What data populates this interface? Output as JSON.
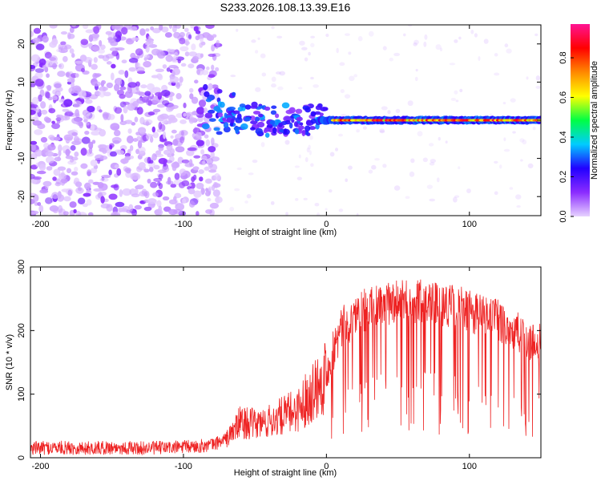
{
  "title": "S233.2026.108.13.39.E16",
  "chart_data": [
    {
      "id": "spectrogram",
      "type": "heatmap",
      "xlabel": "Height of straight line (km)",
      "ylabel": "Frequency (Hz)",
      "xlim": [
        -207,
        150
      ],
      "ylim": [
        -25,
        25
      ],
      "xticks": [
        -200,
        -100,
        0,
        100
      ],
      "yticks": [
        -20,
        -10,
        0,
        10,
        20
      ],
      "colorbar": {
        "label": "Normalized spectral amplitude",
        "range": [
          0,
          0.97
        ],
        "ticks": [
          "0.0",
          "0.2",
          "0.4",
          "0.6",
          "0.8"
        ],
        "tick_values": [
          0,
          0.2,
          0.4,
          0.6,
          0.8
        ],
        "colors": [
          "#e7d2ff",
          "#8b2cff",
          "#2200ff",
          "#00ccff",
          "#00ff44",
          "#ffff00",
          "#ff8800",
          "#ff0000",
          "#ff1493"
        ]
      },
      "features": [
        {
          "label": "noise",
          "x_range": [
            -207,
            -75
          ],
          "amplitude": 0.08
        },
        {
          "label": "onset",
          "x_range": [
            -85,
            -45
          ],
          "amplitude": 0.3
        },
        {
          "label": "signal",
          "x_range": [
            0,
            150
          ],
          "frequency_hz": 0,
          "amplitude": 0.85
        }
      ]
    },
    {
      "id": "snr",
      "type": "line",
      "xlabel": "Height of straight line (km)",
      "ylabel": "SNR (10 * v/v)",
      "xlim": [
        -207,
        150
      ],
      "ylim": [
        0,
        300
      ],
      "xticks": [
        -200,
        -100,
        0,
        100
      ],
      "yticks": [
        0,
        100,
        200,
        300
      ],
      "color": "#ee2222",
      "series": [
        {
          "name": "SNR",
          "x": [
            -207,
            -190,
            -170,
            -150,
            -130,
            -110,
            -90,
            -80,
            -70,
            -60,
            -50,
            -40,
            -30,
            -20,
            -10,
            0,
            5,
            10,
            20,
            30,
            40,
            50,
            60,
            70,
            80,
            90,
            100,
            110,
            120,
            130,
            140,
            150
          ],
          "y": [
            15,
            16,
            15,
            16,
            15,
            16,
            18,
            20,
            30,
            60,
            55,
            60,
            70,
            80,
            110,
            140,
            170,
            200,
            225,
            235,
            240,
            245,
            245,
            248,
            242,
            238,
            230,
            225,
            215,
            200,
            185,
            175
          ]
        }
      ]
    }
  ]
}
